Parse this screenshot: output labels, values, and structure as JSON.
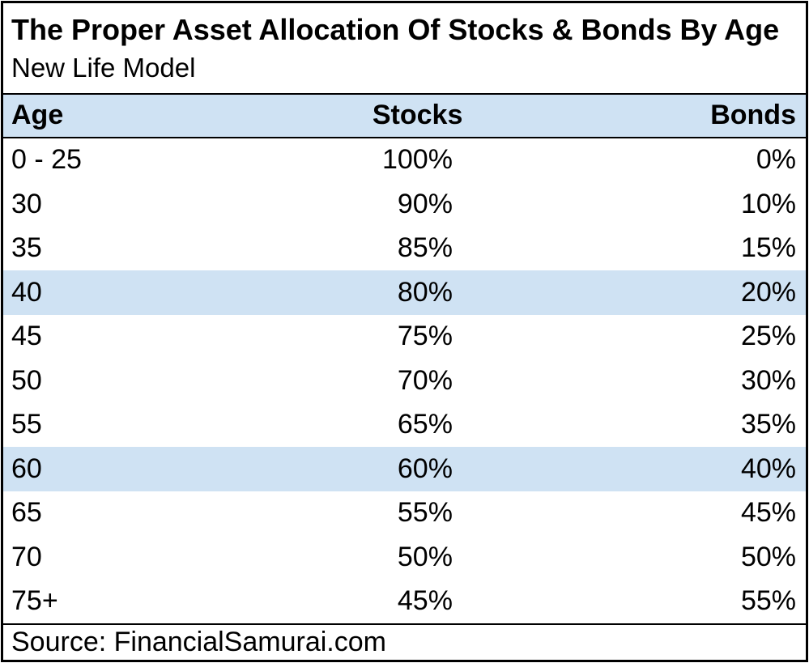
{
  "chart_data": {
    "type": "table",
    "title": "The Proper Asset Allocation Of Stocks & Bonds By Age",
    "subtitle": "New Life Model",
    "columns": [
      "Age",
      "Stocks",
      "Bonds"
    ],
    "rows": [
      {
        "age": "0 - 25",
        "stocks": "100%",
        "bonds": "0%",
        "highlight": false
      },
      {
        "age": "30",
        "stocks": "90%",
        "bonds": "10%",
        "highlight": false
      },
      {
        "age": "35",
        "stocks": "85%",
        "bonds": "15%",
        "highlight": false
      },
      {
        "age": "40",
        "stocks": "80%",
        "bonds": "20%",
        "highlight": true
      },
      {
        "age": "45",
        "stocks": "75%",
        "bonds": "25%",
        "highlight": false
      },
      {
        "age": "50",
        "stocks": "70%",
        "bonds": "30%",
        "highlight": false
      },
      {
        "age": "55",
        "stocks": "65%",
        "bonds": "35%",
        "highlight": false
      },
      {
        "age": "60",
        "stocks": "60%",
        "bonds": "40%",
        "highlight": true
      },
      {
        "age": "65",
        "stocks": "55%",
        "bonds": "45%",
        "highlight": false
      },
      {
        "age": "70",
        "stocks": "50%",
        "bonds": "50%",
        "highlight": false
      },
      {
        "age": "75+",
        "stocks": "45%",
        "bonds": "55%",
        "highlight": false
      }
    ],
    "highlighted_ages": [
      "40",
      "60"
    ],
    "source": "Source: FinancialSamurai.com",
    "layout": {
      "age_align": "left",
      "stocks_align": "right",
      "bonds_align": "right",
      "gridlines": "none-between-data-rows"
    },
    "colors": {
      "header_bg": "#cfe2f3",
      "highlight_bg": "#cfe2f3",
      "border": "#000000",
      "text": "#000000",
      "background": "#ffffff"
    }
  }
}
